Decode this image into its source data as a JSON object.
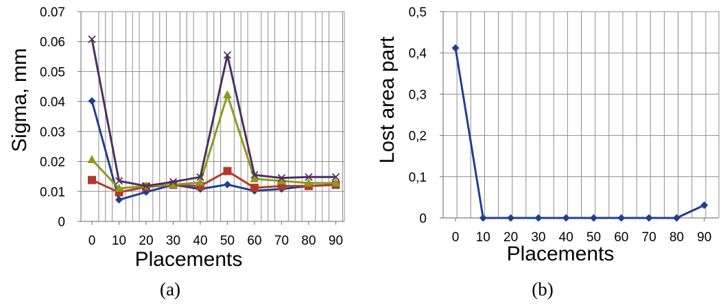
{
  "chart_data": [
    {
      "type": "line",
      "panel_label": "(a)",
      "xlabel": "Placements",
      "ylabel": "Sigma, mm",
      "categories": [
        "0",
        "10",
        "20",
        "30",
        "40",
        "50",
        "60",
        "70",
        "80",
        "90"
      ],
      "yticks": [
        "0",
        "0.01",
        "0.02",
        "0.03",
        "0.04",
        "0.05",
        "0.06",
        "0.07"
      ],
      "ylim": [
        0,
        0.07
      ],
      "grid": true,
      "legend": "none",
      "series": [
        {
          "color": "#1f3f8f",
          "marker": "diamond",
          "values": [
            0.0402,
            0.0072,
            0.0098,
            0.0122,
            0.0108,
            0.0123,
            0.0102,
            0.0108,
            0.0118,
            0.0122
          ]
        },
        {
          "color": "#b03a2e",
          "marker": "square",
          "values": [
            0.0138,
            0.0097,
            0.0115,
            0.0122,
            0.0118,
            0.0168,
            0.0112,
            0.0118,
            0.0118,
            0.0122
          ]
        },
        {
          "color": "#8c9a1c",
          "marker": "triangle",
          "values": [
            0.0206,
            0.011,
            0.0118,
            0.0122,
            0.013,
            0.0422,
            0.0142,
            0.0135,
            0.0128,
            0.0128
          ]
        },
        {
          "color": "#4f2e5f",
          "marker": "x",
          "values": [
            0.0608,
            0.0135,
            0.0118,
            0.0132,
            0.0148,
            0.0555,
            0.0155,
            0.0145,
            0.0148,
            0.0148
          ]
        }
      ]
    },
    {
      "type": "line",
      "panel_label": "(b)",
      "xlabel": "Placements",
      "ylabel": "Lost area part",
      "categories": [
        "0",
        "10",
        "20",
        "30",
        "40",
        "50",
        "60",
        "70",
        "80",
        "90"
      ],
      "yticks": [
        "0",
        "0,1",
        "0,2",
        "0,3",
        "0,4",
        "0,5"
      ],
      "ylim": [
        0,
        0.5
      ],
      "grid": true,
      "legend": "none",
      "series": [
        {
          "color": "#1f3f8f",
          "marker": "diamond",
          "values": [
            0.412,
            0,
            0,
            0,
            0,
            0,
            0,
            0,
            0,
            0.031
          ]
        }
      ]
    }
  ]
}
